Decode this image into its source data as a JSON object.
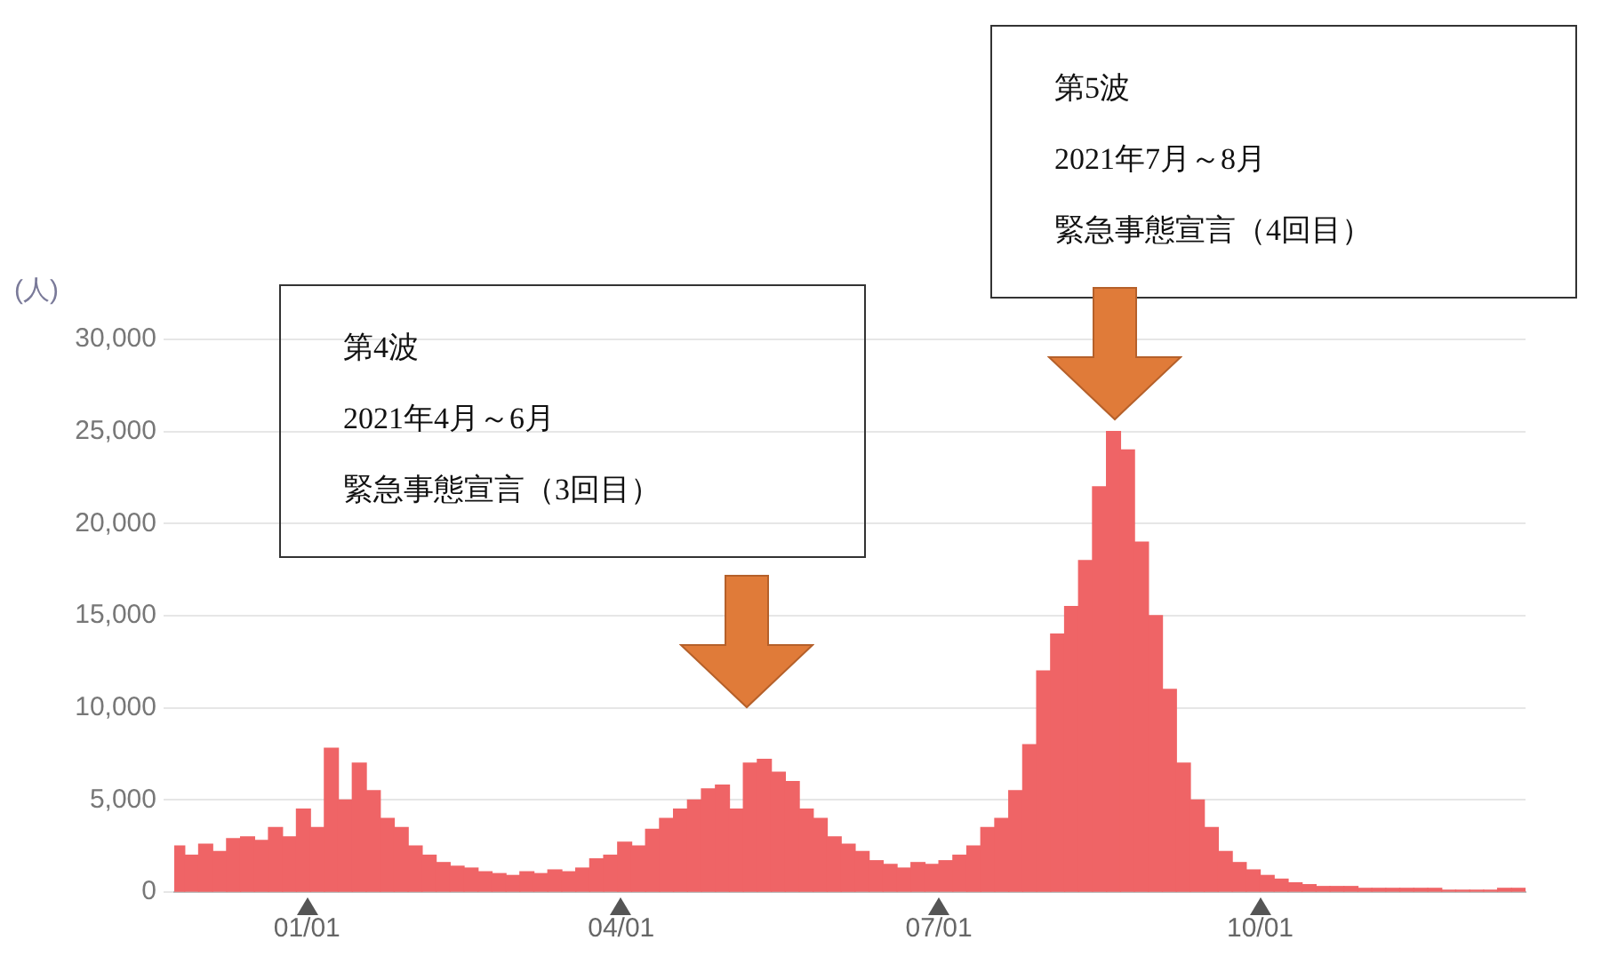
{
  "chart_data": {
    "type": "bar",
    "ylabel": "(人)",
    "x": [
      "2020-11-25",
      "2020-11-29",
      "2020-12-03",
      "2020-12-07",
      "2020-12-11",
      "2020-12-15",
      "2020-12-19",
      "2020-12-23",
      "2020-12-27",
      "2020-12-31",
      "2021-01-04",
      "2021-01-08",
      "2021-01-12",
      "2021-01-16",
      "2021-01-20",
      "2021-01-24",
      "2021-01-28",
      "2021-02-01",
      "2021-02-05",
      "2021-02-09",
      "2021-02-13",
      "2021-02-17",
      "2021-02-21",
      "2021-02-25",
      "2021-03-01",
      "2021-03-05",
      "2021-03-09",
      "2021-03-13",
      "2021-03-17",
      "2021-03-21",
      "2021-03-25",
      "2021-03-29",
      "2021-04-02",
      "2021-04-06",
      "2021-04-10",
      "2021-04-14",
      "2021-04-18",
      "2021-04-22",
      "2021-04-26",
      "2021-04-30",
      "2021-05-04",
      "2021-05-08",
      "2021-05-12",
      "2021-05-16",
      "2021-05-20",
      "2021-05-24",
      "2021-05-28",
      "2021-06-01",
      "2021-06-05",
      "2021-06-09",
      "2021-06-13",
      "2021-06-17",
      "2021-06-21",
      "2021-06-25",
      "2021-06-29",
      "2021-07-03",
      "2021-07-07",
      "2021-07-11",
      "2021-07-15",
      "2021-07-19",
      "2021-07-23",
      "2021-07-27",
      "2021-07-31",
      "2021-08-04",
      "2021-08-08",
      "2021-08-12",
      "2021-08-16",
      "2021-08-20",
      "2021-08-24",
      "2021-08-28",
      "2021-09-01",
      "2021-09-05",
      "2021-09-09",
      "2021-09-13",
      "2021-09-17",
      "2021-09-21",
      "2021-09-25",
      "2021-09-29",
      "2021-10-03",
      "2021-10-07",
      "2021-10-11",
      "2021-10-15",
      "2021-10-19",
      "2021-10-23",
      "2021-10-27",
      "2021-10-31",
      "2021-11-04",
      "2021-11-08",
      "2021-11-12",
      "2021-11-16",
      "2021-11-20",
      "2021-11-24",
      "2021-11-28",
      "2021-12-02",
      "2021-12-06",
      "2021-12-10",
      "2021-12-14"
    ],
    "series": [
      {
        "color": "#ef6466",
        "values": [
          2500,
          2000,
          2600,
          2200,
          2900,
          3000,
          2800,
          3500,
          3000,
          4500,
          3500,
          7800,
          5000,
          7000,
          5500,
          4000,
          3500,
          2500,
          2000,
          1600,
          1400,
          1300,
          1100,
          1000,
          900,
          1100,
          1000,
          1200,
          1100,
          1300,
          1800,
          2000,
          2700,
          2500,
          3400,
          4000,
          4500,
          5000,
          5600,
          5800,
          4500,
          7000,
          7200,
          6500,
          6000,
          4500,
          4000,
          3000,
          2600,
          2200,
          1700,
          1500,
          1300,
          1600,
          1500,
          1700,
          2000,
          2500,
          3500,
          4000,
          5500,
          8000,
          12000,
          14000,
          15500,
          18000,
          22000,
          25000,
          24000,
          19000,
          15000,
          11000,
          7000,
          5000,
          3500,
          2200,
          1600,
          1200,
          900,
          700,
          500,
          400,
          300,
          300,
          300,
          200,
          200,
          200,
          200,
          200,
          200,
          100,
          100,
          100,
          100,
          200,
          200
        ]
      }
    ],
    "xlim": [
      "2020-11-24",
      "2021-12-16"
    ],
    "xticks": [
      {
        "value": "2021-01-01",
        "label": "01/01"
      },
      {
        "value": "2021-04-01",
        "label": "04/01"
      },
      {
        "value": "2021-07-01",
        "label": "07/01"
      },
      {
        "value": "2021-10-01",
        "label": "10/01"
      }
    ],
    "ylim": [
      0,
      30000
    ],
    "yticks": [
      {
        "value": 0,
        "label": "0"
      },
      {
        "value": 5000,
        "label": "5,000"
      },
      {
        "value": 10000,
        "label": "10,000"
      },
      {
        "value": 15000,
        "label": "15,000"
      },
      {
        "value": 20000,
        "label": "20,000"
      },
      {
        "value": 25000,
        "label": "25,000"
      },
      {
        "value": 30000,
        "label": "30,000"
      }
    ],
    "grid": "y",
    "legend": false,
    "annotations": [
      "第4波",
      "2021年4月～6月",
      "緊急事態宣言（3回目）",
      "第5波",
      "2021年7月～8月",
      "緊急事態宣言（4回目）"
    ]
  }
}
